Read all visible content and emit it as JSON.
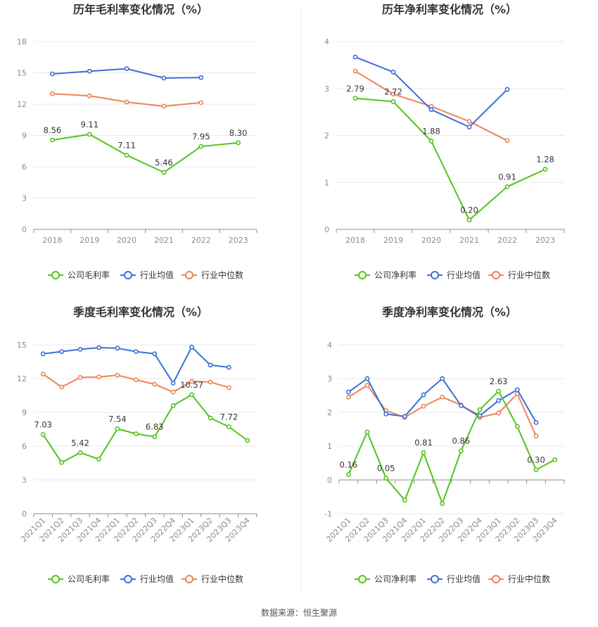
{
  "colors": {
    "company": "#52c41a",
    "industry_avg": "#3a6fd8",
    "industry_median": "#f08256"
  },
  "source": "数据来源：恒生聚源",
  "chart_data": [
    {
      "type": "line",
      "title": "历年毛利率变化情况（%）",
      "categories": [
        "2018",
        "2019",
        "2020",
        "2021",
        "2022",
        "2023"
      ],
      "ylim": [
        0,
        18
      ],
      "yticks": [
        0,
        3,
        6,
        9,
        12,
        15,
        18
      ],
      "grid": true,
      "legend_position": "bottom",
      "series": [
        {
          "name": "公司毛利率",
          "color": "#52c41a",
          "values": [
            8.56,
            9.11,
            7.11,
            5.46,
            7.95,
            8.3
          ],
          "labels": [
            "8.56",
            "9.11",
            "7.11",
            "5.46",
            "7.95",
            "8.30"
          ]
        },
        {
          "name": "行业均值",
          "color": "#3a6fd8",
          "values": [
            14.9,
            15.15,
            15.4,
            14.5,
            14.55,
            null
          ]
        },
        {
          "name": "行业中位数",
          "color": "#f08256",
          "values": [
            13.0,
            12.8,
            12.2,
            11.8,
            12.15,
            null
          ]
        }
      ]
    },
    {
      "type": "line",
      "title": "历年净利率变化情况（%）",
      "categories": [
        "2018",
        "2019",
        "2020",
        "2021",
        "2022",
        "2023"
      ],
      "ylim": [
        0,
        4
      ],
      "yticks": [
        0,
        1,
        2,
        3,
        4
      ],
      "grid": true,
      "legend_position": "bottom",
      "series": [
        {
          "name": "公司净利率",
          "color": "#52c41a",
          "values": [
            2.79,
            2.72,
            1.88,
            0.2,
            0.91,
            1.28
          ],
          "labels": [
            "2.79",
            "2.72",
            "1.88",
            "0.20",
            "0.91",
            "1.28"
          ]
        },
        {
          "name": "行业均值",
          "color": "#3a6fd8",
          "values": [
            3.67,
            3.35,
            2.55,
            2.18,
            2.98,
            null
          ]
        },
        {
          "name": "行业中位数",
          "color": "#f08256",
          "values": [
            3.37,
            2.88,
            2.62,
            2.3,
            1.89,
            null
          ]
        }
      ]
    },
    {
      "type": "line",
      "title": "季度毛利率变化情况（%）",
      "categories": [
        "2021Q1",
        "2021Q2",
        "2021Q3",
        "2021Q4",
        "2022Q1",
        "2022Q2",
        "2022Q3",
        "2022Q4",
        "2023Q1",
        "2023Q2",
        "2023Q3",
        "2023Q4"
      ],
      "ylim": [
        0,
        15
      ],
      "yticks": [
        0,
        3,
        6,
        9,
        12,
        15
      ],
      "grid": true,
      "legend_position": "bottom",
      "series": [
        {
          "name": "公司毛利率",
          "color": "#52c41a",
          "values": [
            7.03,
            4.55,
            5.42,
            4.85,
            7.54,
            7.1,
            6.83,
            9.6,
            10.57,
            8.5,
            7.72,
            6.5
          ],
          "labels": [
            "7.03",
            "",
            "5.42",
            "",
            "7.54",
            "",
            "6.83",
            "",
            "10.57",
            "",
            "7.72",
            ""
          ]
        },
        {
          "name": "行业均值",
          "color": "#3a6fd8",
          "values": [
            14.2,
            14.4,
            14.6,
            14.75,
            14.7,
            14.4,
            14.2,
            11.6,
            14.8,
            13.2,
            13.0,
            null
          ]
        },
        {
          "name": "行业中位数",
          "color": "#f08256",
          "values": [
            12.4,
            11.25,
            12.1,
            12.15,
            12.3,
            11.9,
            11.5,
            10.8,
            11.75,
            11.7,
            11.2,
            null
          ]
        }
      ]
    },
    {
      "type": "line",
      "title": "季度净利率变化情况（%）",
      "categories": [
        "2021Q1",
        "2021Q2",
        "2021Q3",
        "2021Q4",
        "2022Q1",
        "2022Q2",
        "2022Q3",
        "2022Q4",
        "2023Q1",
        "2023Q2",
        "2023Q3",
        "2023Q4"
      ],
      "ylim": [
        -1,
        4
      ],
      "yticks": [
        -1,
        0,
        1,
        2,
        3,
        4
      ],
      "grid": true,
      "legend_position": "bottom",
      "series": [
        {
          "name": "公司净利率",
          "color": "#52c41a",
          "values": [
            0.16,
            1.42,
            0.05,
            -0.6,
            0.81,
            -0.7,
            0.86,
            2.08,
            2.63,
            1.58,
            0.3,
            0.6
          ],
          "labels": [
            "0.16",
            "",
            "0.05",
            "",
            "0.81",
            "",
            "0.86",
            "",
            "2.63",
            "",
            "0.30",
            ""
          ]
        },
        {
          "name": "行业均值",
          "color": "#3a6fd8",
          "values": [
            2.6,
            3.0,
            1.95,
            1.88,
            2.52,
            3.0,
            2.2,
            1.9,
            2.35,
            2.67,
            1.7,
            null
          ]
        },
        {
          "name": "行业中位数",
          "color": "#f08256",
          "values": [
            2.45,
            2.8,
            2.05,
            1.85,
            2.18,
            2.45,
            2.22,
            1.85,
            1.98,
            2.55,
            1.3,
            null
          ]
        }
      ]
    }
  ]
}
